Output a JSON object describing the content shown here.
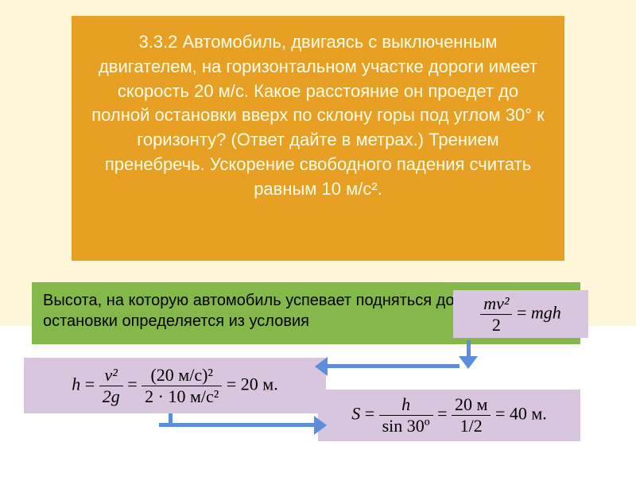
{
  "colors": {
    "bg_top": "#fef6d9",
    "bg_bottom": "#ffffff",
    "problem_box_bg": "#e8a024",
    "problem_text": "#fffde8",
    "answer_box_bg": "#85b84a",
    "formula_bg": "#d8c5de",
    "arrow": "#5b8fdd"
  },
  "problem": {
    "text": "3.3.2 Автомобиль, двигаясь с выключенным двигателем, на горизонтальном участке дороги имеет скорость 20 м/с. Какое расстояние он проедет до полной остановки вверх по склону горы под углом 30° к горизонту? (Ответ дайте в метрах.) Трением пренебречь. Ускорение свободного падения считать равным 10 м/с²."
  },
  "answer": {
    "text": "Высота, на которую автомобиль успевает подняться до полной остановки определяется из условия"
  },
  "formula_ke": {
    "lhs_num": "mv²",
    "lhs_den": "2",
    "rhs": "mgh"
  },
  "formula_h": {
    "var": "h",
    "f1_num": "v²",
    "f1_den": "2g",
    "f2_num": "(20 м/с)²",
    "f2_den": "2 · 10 м/с²",
    "result": "20 м."
  },
  "formula_s": {
    "var": "S",
    "f1_num": "h",
    "f1_den": "sin 30º",
    "f2_num": "20 м",
    "f2_den": "1/2",
    "result": "40 м."
  },
  "fonts": {
    "body": "Arial, sans-serif",
    "math": "Times New Roman, serif",
    "problem_size": 22,
    "answer_size": 20,
    "formula_size": 22
  }
}
